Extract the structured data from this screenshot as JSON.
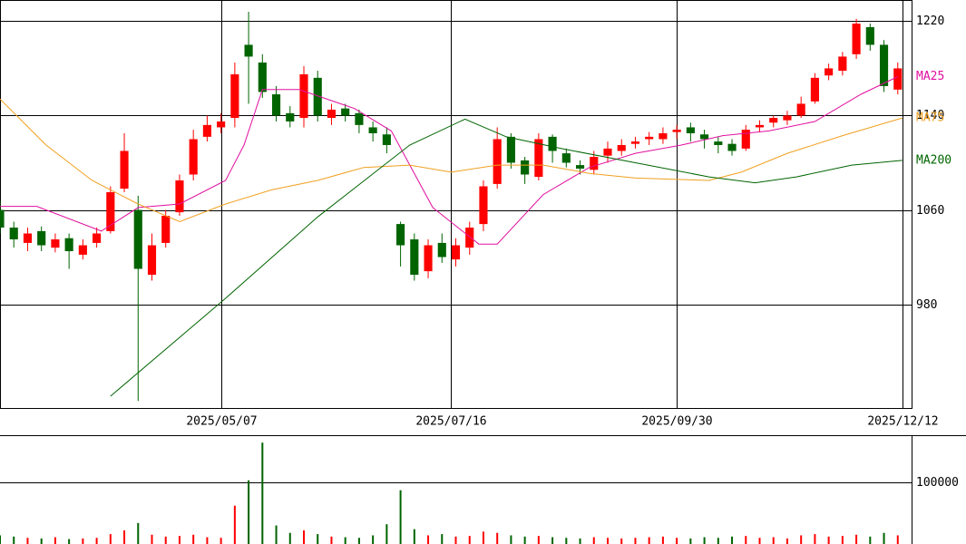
{
  "chart_data": {
    "type": "candlestick",
    "x": [
      0,
      3,
      6,
      9,
      12,
      15,
      18,
      21,
      24,
      27,
      30,
      33,
      36,
      39,
      42,
      45,
      48,
      51,
      54,
      57,
      60,
      63,
      66,
      69,
      72,
      75,
      78,
      81,
      84,
      87,
      90,
      93,
      96,
      99,
      102,
      105,
      108,
      111,
      114,
      117,
      120,
      123,
      126,
      129,
      132,
      135,
      138,
      141,
      144,
      147,
      150,
      153,
      156,
      159,
      162,
      165,
      168,
      171,
      174,
      177,
      180,
      183,
      186,
      189,
      192,
      195
    ],
    "open": [
      1060,
      1045,
      1032,
      1042,
      1028,
      1036,
      1022,
      1032,
      1042,
      1078,
      1060,
      1005,
      1032,
      1058,
      1090,
      1122,
      1130,
      1138,
      1200,
      1185,
      1158,
      1142,
      1138,
      1172,
      1138,
      1146,
      1142,
      1130,
      1124,
      1048,
      1035,
      1008,
      1032,
      1018,
      1028,
      1048,
      1082,
      1122,
      1102,
      1088,
      1122,
      1108,
      1098,
      1094,
      1106,
      1110,
      1116,
      1120,
      1120,
      1126,
      1130,
      1124,
      1118,
      1116,
      1112,
      1130,
      1134,
      1136,
      1140,
      1152,
      1174,
      1178,
      1192,
      1215,
      1200,
      1162
    ],
    "high": [
      1068,
      1050,
      1045,
      1046,
      1040,
      1040,
      1035,
      1045,
      1080,
      1125,
      1072,
      1040,
      1060,
      1090,
      1128,
      1140,
      1142,
      1185,
      1228,
      1192,
      1165,
      1148,
      1182,
      1178,
      1150,
      1150,
      1145,
      1135,
      1130,
      1050,
      1040,
      1035,
      1040,
      1036,
      1050,
      1085,
      1130,
      1125,
      1105,
      1125,
      1124,
      1112,
      1102,
      1110,
      1118,
      1120,
      1122,
      1126,
      1130,
      1132,
      1134,
      1128,
      1122,
      1120,
      1132,
      1136,
      1140,
      1144,
      1156,
      1176,
      1184,
      1194,
      1222,
      1218,
      1204,
      1185
    ],
    "low": [
      1040,
      1028,
      1025,
      1025,
      1024,
      1010,
      1018,
      1028,
      1040,
      1075,
      898,
      1000,
      1028,
      1055,
      1085,
      1118,
      1125,
      1130,
      1150,
      1155,
      1135,
      1130,
      1130,
      1135,
      1132,
      1135,
      1125,
      1118,
      1108,
      1012,
      1000,
      1002,
      1015,
      1012,
      1022,
      1042,
      1078,
      1095,
      1082,
      1085,
      1100,
      1096,
      1090,
      1090,
      1100,
      1106,
      1112,
      1115,
      1116,
      1120,
      1118,
      1112,
      1108,
      1106,
      1110,
      1126,
      1130,
      1132,
      1138,
      1150,
      1170,
      1174,
      1188,
      1195,
      1160,
      1158
    ],
    "close": [
      1045,
      1035,
      1040,
      1030,
      1035,
      1025,
      1030,
      1040,
      1075,
      1110,
      1010,
      1030,
      1055,
      1085,
      1120,
      1132,
      1135,
      1175,
      1190,
      1160,
      1140,
      1135,
      1175,
      1140,
      1145,
      1140,
      1132,
      1125,
      1115,
      1030,
      1005,
      1030,
      1020,
      1030,
      1045,
      1080,
      1120,
      1100,
      1090,
      1120,
      1110,
      1100,
      1095,
      1105,
      1112,
      1115,
      1118,
      1122,
      1125,
      1128,
      1125,
      1120,
      1115,
      1110,
      1128,
      1132,
      1138,
      1140,
      1150,
      1172,
      1180,
      1190,
      1218,
      1200,
      1165,
      1180
    ],
    "ylim": [
      892,
      1238
    ],
    "yticks": [
      980,
      1060,
      1140,
      1220
    ],
    "xlim": [
      0,
      198
    ],
    "xticks": [
      {
        "value": 48,
        "label": "2025/05/07"
      },
      {
        "value": 98,
        "label": "2025/07/16"
      },
      {
        "value": 147,
        "label": "2025/09/30"
      },
      {
        "value": 196,
        "label": "2025/12/12"
      }
    ],
    "up_color": "#ff0000",
    "down_color": "#006400",
    "series": [
      {
        "name": "MA25",
        "color": "#e0109f",
        "x": [
          0,
          8,
          22,
          30,
          39,
          49,
          53,
          57,
          65,
          77,
          85,
          94,
          104,
          108,
          118,
          128,
          138,
          148,
          157,
          167,
          177,
          187,
          195
        ],
        "values": [
          1063,
          1063,
          1042,
          1062,
          1065,
          1085,
          1115,
          1162,
          1162,
          1146,
          1127,
          1062,
          1031,
          1031,
          1073,
          1096,
          1108,
          1115,
          1123,
          1127,
          1135,
          1158,
          1173
        ]
      },
      {
        "name": "MA75",
        "color": "#f0a020",
        "x": [
          0,
          10,
          20,
          30,
          39,
          49,
          59,
          69,
          79,
          89,
          98,
          108,
          118,
          128,
          138,
          154,
          161,
          171,
          183,
          196
        ],
        "values": [
          1154,
          1115,
          1085,
          1065,
          1050,
          1065,
          1077,
          1085,
          1096,
          1098,
          1092,
          1098,
          1098,
          1091,
          1087,
          1085,
          1092,
          1108,
          1123,
          1138
        ]
      },
      {
        "name": "MA200",
        "color": "#006400",
        "x": [
          24,
          49,
          69,
          89,
          101,
          110,
          122,
          138,
          154,
          164,
          173,
          185,
          196
        ],
        "values": [
          902,
          985,
          1054,
          1115,
          1137,
          1122,
          1112,
          1100,
          1088,
          1083,
          1088,
          1098,
          1102
        ]
      }
    ],
    "volume": {
      "values": [
        14000,
        12000,
        10000,
        9000,
        11000,
        8000,
        9000,
        10000,
        16000,
        22000,
        34000,
        15000,
        12000,
        13000,
        15000,
        11000,
        10000,
        62000,
        103000,
        164000,
        30000,
        18000,
        22000,
        16000,
        12000,
        11000,
        10000,
        14000,
        32000,
        87000,
        24000,
        14000,
        16000,
        12000,
        13000,
        20000,
        18000,
        14000,
        12000,
        13000,
        11000,
        10000,
        9000,
        11000,
        10000,
        9000,
        10000,
        11000,
        12000,
        10000,
        9000,
        11000,
        10000,
        12000,
        13000,
        10000,
        11000,
        9000,
        14000,
        16000,
        12000,
        13000,
        15000,
        12000,
        18000,
        14000
      ],
      "ylim": [
        0,
        176000
      ],
      "yticks": [
        100000
      ]
    }
  }
}
